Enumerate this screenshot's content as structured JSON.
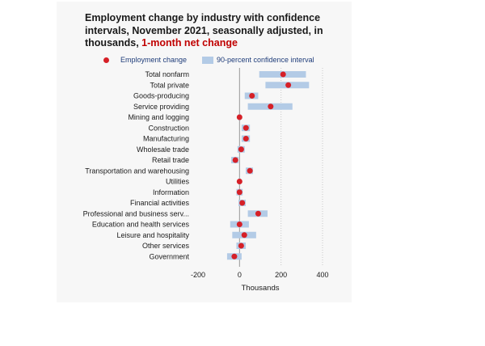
{
  "title_main": "Employment change by industry with confidence intervals, November 2021, seasonally adjusted, in thousands,",
  "title_sub": "1-month net change",
  "legend": {
    "point_label": "Employment change",
    "interval_label": "90-percent confidence interval"
  },
  "colors": {
    "point": "#d62027",
    "interval": "#b3cbe6",
    "zero_line": "#999999",
    "grid": "#c8c8c8"
  },
  "chart_data": {
    "type": "scatter",
    "title": "Employment change by industry with confidence intervals, November 2021, seasonally adjusted, in thousands, 1-month net change",
    "xlabel": "Thousands",
    "ylabel": "",
    "xlim": [
      -200,
      400
    ],
    "xticks": [
      -200,
      0,
      200,
      400
    ],
    "xtick_labels": [
      "-200",
      "0",
      "200",
      "400"
    ],
    "grid": "vertical dotted at 200 and 400",
    "legend_position": "top",
    "categories": [
      "Total nonfarm",
      "Total private",
      "Goods-producing",
      "Service providing",
      "Mining and logging",
      "Construction",
      "Manufacturing",
      "Wholesale trade",
      "Retail trade",
      "Transportation and warehousing",
      "Utilities",
      "Information",
      "Financial activities",
      "Professional and business serv...",
      "Education and health services",
      "Leisure and hospitality",
      "Other services",
      "Government"
    ],
    "series": [
      {
        "name": "Employment change",
        "values": [
          210,
          235,
          60,
          150,
          0,
          31,
          31,
          8,
          -20,
          50,
          0,
          0,
          13,
          90,
          0,
          23,
          8,
          -25
        ]
      },
      {
        "name": "90-percent confidence interval",
        "low": [
          95,
          125,
          25,
          40,
          -5,
          10,
          10,
          -10,
          -40,
          30,
          -5,
          -15,
          -5,
          40,
          -45,
          -35,
          -15,
          -60
        ],
        "high": [
          320,
          335,
          90,
          255,
          5,
          50,
          50,
          25,
          -5,
          65,
          5,
          15,
          30,
          135,
          45,
          80,
          30,
          10
        ]
      }
    ]
  }
}
